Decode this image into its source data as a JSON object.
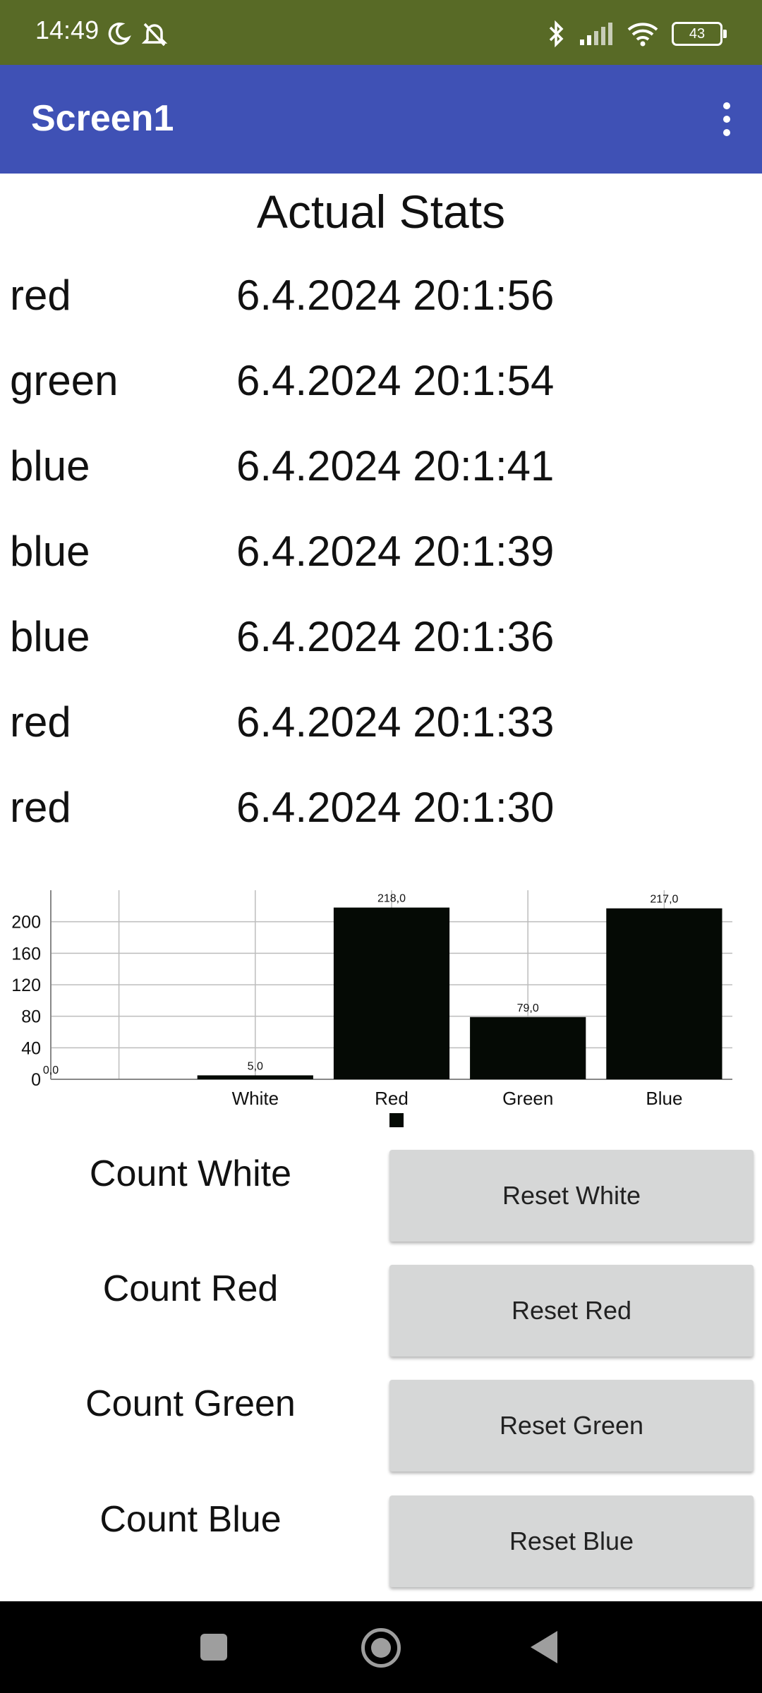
{
  "status_bar": {
    "time": "14:49",
    "battery_level": "43",
    "icons": [
      "moon-icon",
      "bell-off-icon",
      "bluetooth-icon",
      "signal-icon",
      "wifi-icon",
      "battery-icon"
    ]
  },
  "app_bar": {
    "title": "Screen1",
    "menu_icon": "overflow-menu-icon"
  },
  "main": {
    "heading": "Actual Stats",
    "stats": [
      {
        "color": "red",
        "time": "6.4.2024 20:1:56"
      },
      {
        "color": "green",
        "time": "6.4.2024 20:1:54"
      },
      {
        "color": "blue",
        "time": "6.4.2024 20:1:41"
      },
      {
        "color": "blue",
        "time": "6.4.2024 20:1:39"
      },
      {
        "color": "blue",
        "time": "6.4.2024 20:1:36"
      },
      {
        "color": "red",
        "time": "6.4.2024 20:1:33"
      },
      {
        "color": "red",
        "time": "6.4.2024 20:1:30"
      }
    ]
  },
  "chart_data": {
    "type": "bar",
    "categories": [
      "",
      "White",
      "Red",
      "Green",
      "Blue"
    ],
    "values": [
      0,
      5,
      218,
      79,
      217
    ],
    "data_labels": [
      "0,0",
      "5,0",
      "218,0",
      "79,0",
      "217,0"
    ],
    "yticks": [
      0,
      40,
      80,
      120,
      160,
      200
    ],
    "ylim": [
      0,
      240
    ],
    "grid": true,
    "bar_color": "#050a05",
    "legend": "bottom-center",
    "title": "",
    "xlabel": "",
    "ylabel": ""
  },
  "counters": [
    {
      "label": "Count White",
      "button": "Reset White"
    },
    {
      "label": "Count Red",
      "button": "Reset Red"
    },
    {
      "label": "Count Green",
      "button": "Reset Green"
    },
    {
      "label": "Count Blue",
      "button": "Reset Blue"
    }
  ],
  "nav_bar": {
    "icons": [
      "recents-icon",
      "home-icon",
      "back-icon"
    ]
  },
  "colors": {
    "status_bar": "#586a26",
    "app_bar": "#3f51b5",
    "button": "#d6d7d7"
  }
}
